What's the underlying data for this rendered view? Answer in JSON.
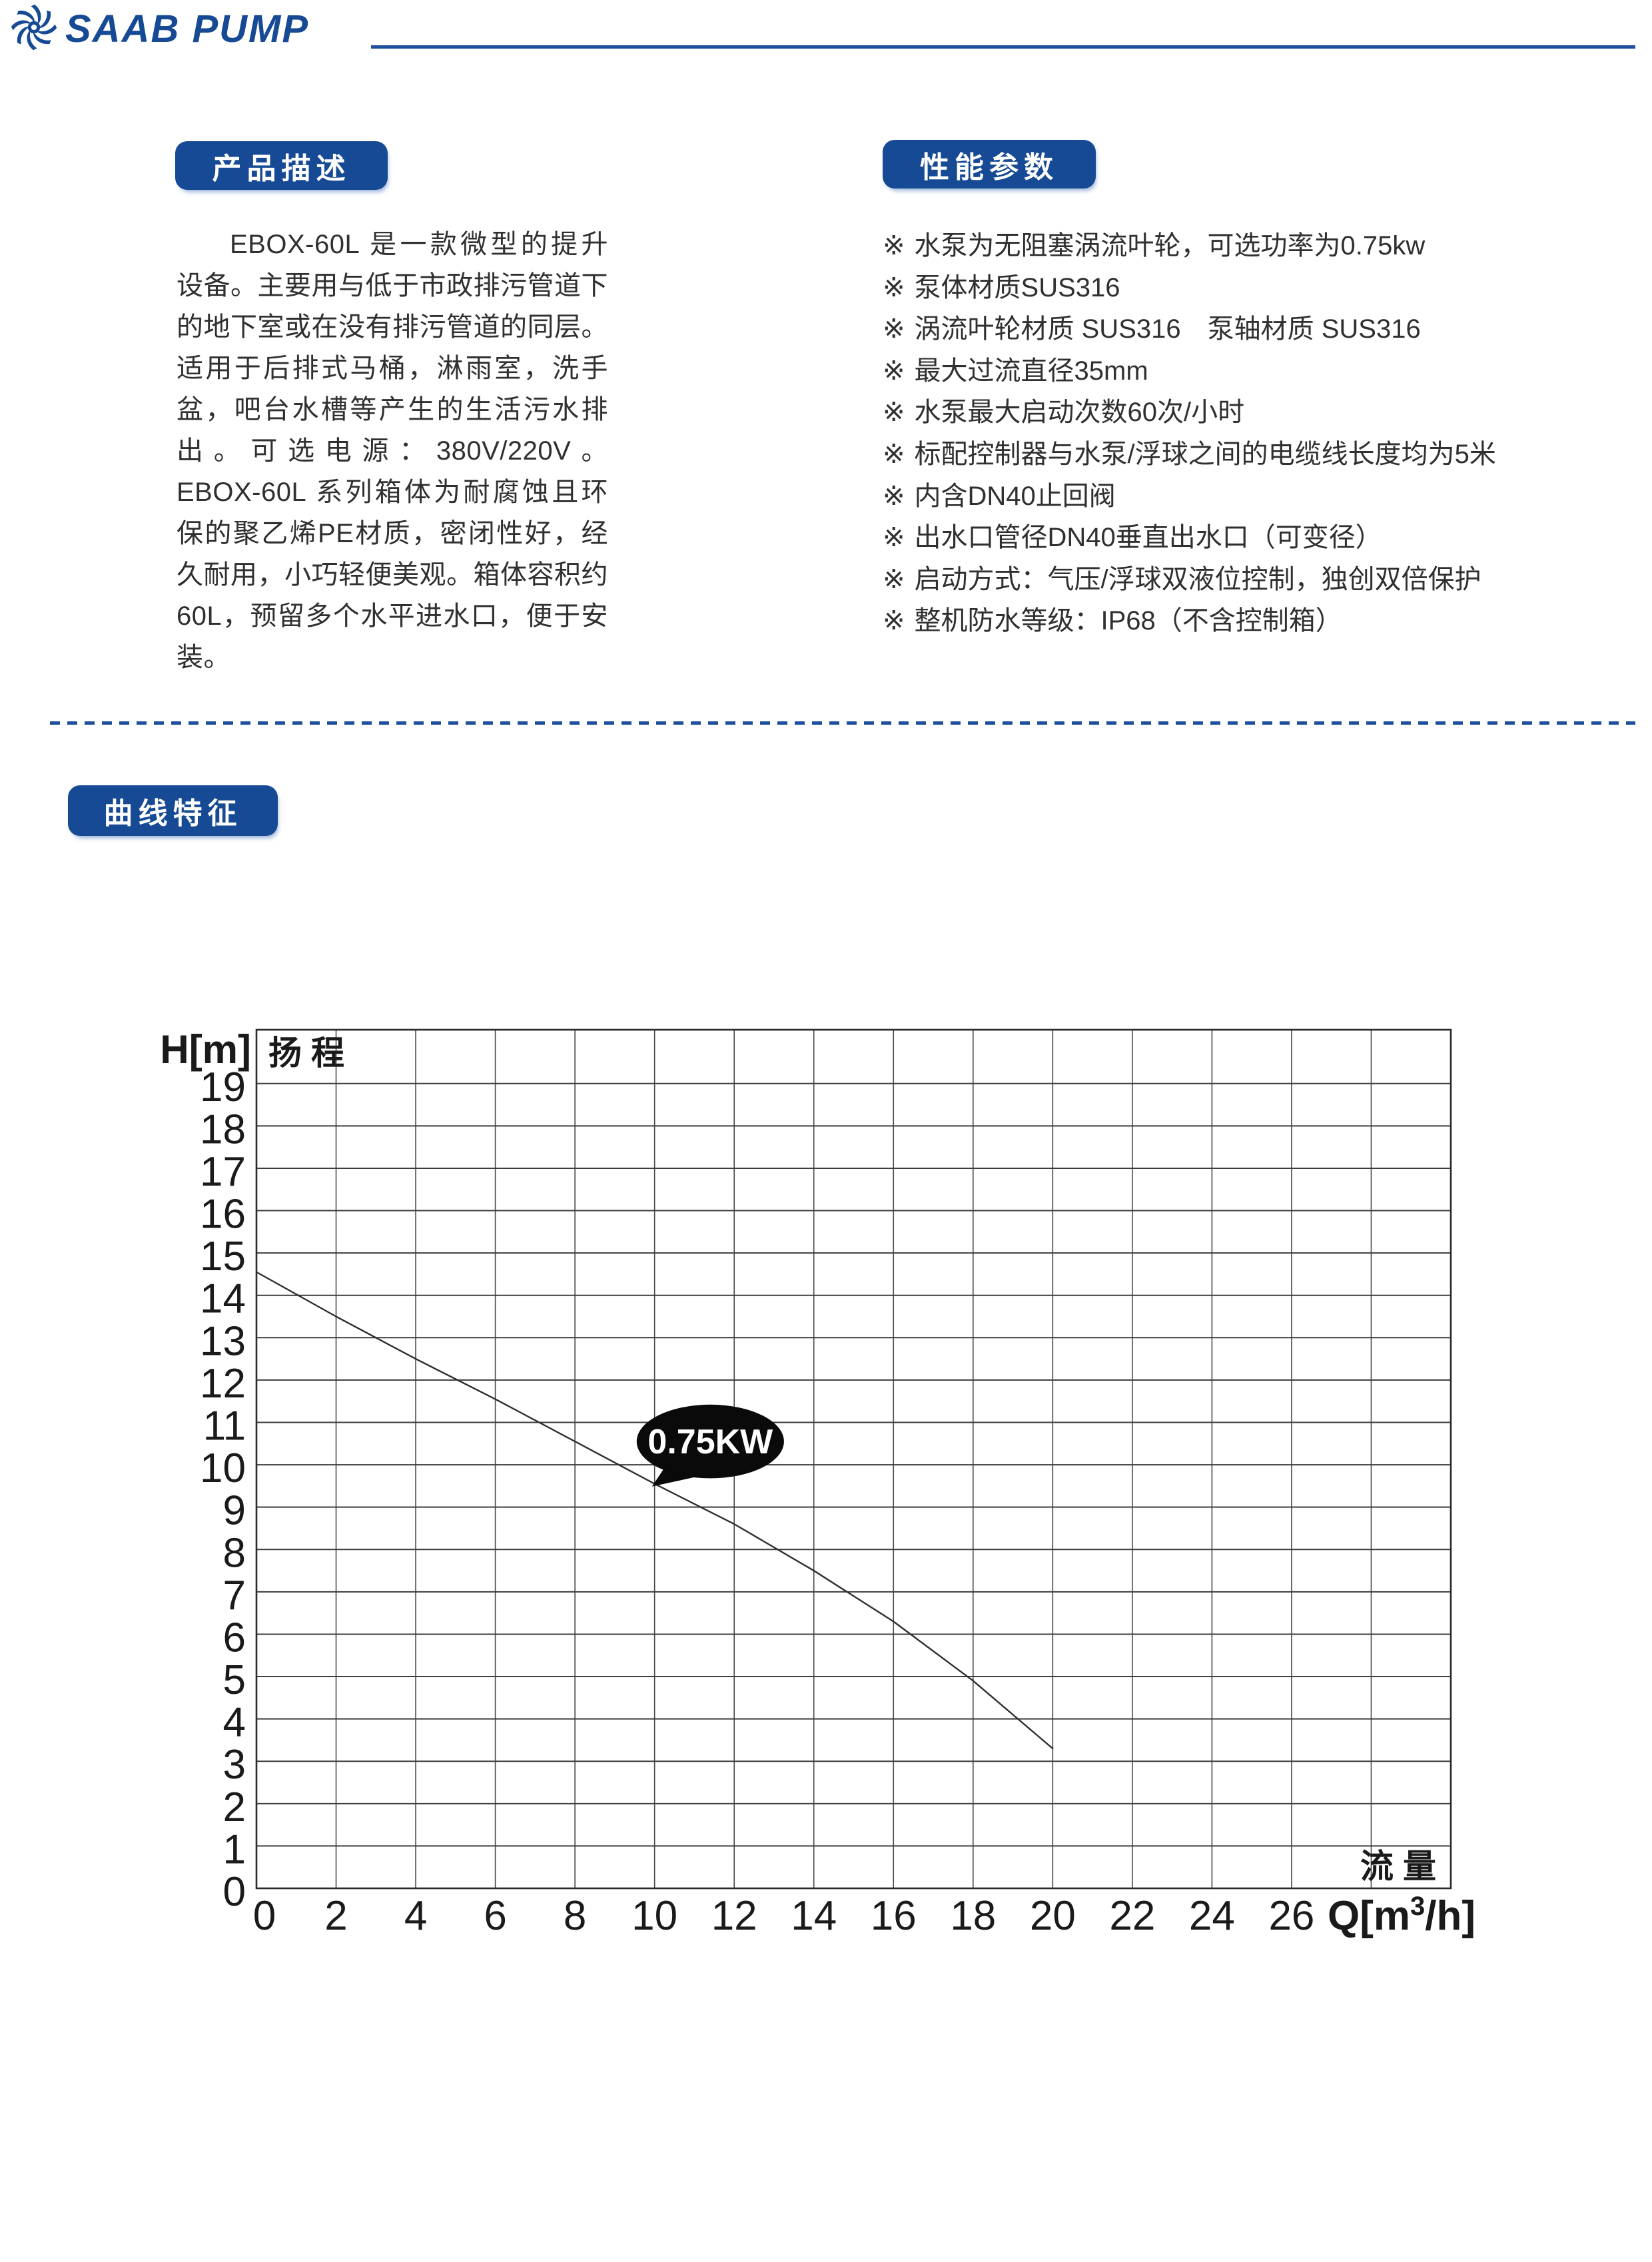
{
  "header": {
    "logo_text": "SAAB PUMP"
  },
  "sections": {
    "product_desc": {
      "title": "产品描述",
      "paragraph": "EBOX-60L 是一款微型的提升设备。主要用与低于市政排污管道下的地下室或在没有排污管道的同层。适用于后排式马桶，淋雨室，洗手盆，吧台水槽等产生的生活污水排出。可选电源：380V/220V。EBOX-60L 系列箱体为耐腐蚀且环保的聚乙烯PE材质，密闭性好，经久耐用，小巧轻便美观。箱体容积约60L，预留多个水平进水口，便于安装。"
    },
    "performance": {
      "title": "性能参数",
      "bullet_marker": "※",
      "bullets": [
        "水泵为无阻塞涡流叶轮，可选功率为0.75kw",
        "泵体材质SUS316",
        "涡流叶轮材质 SUS316　泵轴材质 SUS316",
        "最大过流直径35mm",
        "水泵最大启动次数60次/小时",
        "标配控制器与水泵/浮球之间的电缆线长度均为5米",
        "内含DN40止回阀",
        "出水口管径DN40垂直出水口（可变径）",
        "启动方式：气压/浮球双液位控制，独创双倍保护",
        "整机防水等级：IP68（不含控制箱）"
      ]
    },
    "curve": {
      "title": "曲线特征"
    }
  },
  "chart_data": {
    "type": "line",
    "y_axis_label": "H[m]",
    "y_axis_cjk_label": "扬程",
    "x_axis_cjk_label": "流量",
    "x_axis_label_parts": {
      "pre": "Q[m",
      "sup": "3",
      "post": "/h]"
    },
    "xlim": [
      0,
      30
    ],
    "ylim": [
      0,
      20.27
    ],
    "x_grid_step": 2,
    "y_grid_step": 1,
    "grid": true,
    "legend_position": "none",
    "x_ticks": [
      0,
      2,
      4,
      6,
      8,
      10,
      12,
      14,
      16,
      18,
      20,
      22,
      24,
      26
    ],
    "y_ticks": [
      0,
      1,
      2,
      3,
      4,
      5,
      6,
      7,
      8,
      9,
      10,
      11,
      12,
      13,
      14,
      15,
      16,
      17,
      18,
      19
    ],
    "series": [
      {
        "name": "0.75KW",
        "points": [
          [
            0,
            14.55
          ],
          [
            2,
            13.5
          ],
          [
            4,
            12.5
          ],
          [
            6,
            11.55
          ],
          [
            8,
            10.55
          ],
          [
            10,
            9.55
          ],
          [
            12,
            8.6
          ],
          [
            14,
            7.5
          ],
          [
            16,
            6.3
          ],
          [
            18,
            4.9
          ],
          [
            20,
            3.3
          ]
        ]
      }
    ],
    "annotation": {
      "label": "0.75KW",
      "center_q": 11.4,
      "center_h": 10.55,
      "rx_q": 1.85,
      "ry_h": 0.87,
      "tail_q": 10.0,
      "tail_h": 9.55
    }
  },
  "colors": {
    "brand": "#164A94",
    "header_line": "#1D4F9C",
    "grid": "#4A4A4A",
    "border": "#2A2A2A",
    "curve": "#2F2F2F",
    "ink": "#1A1A1A",
    "annotation_bg": "#0A0A0A",
    "annotation_text": "#FFFFFF"
  }
}
